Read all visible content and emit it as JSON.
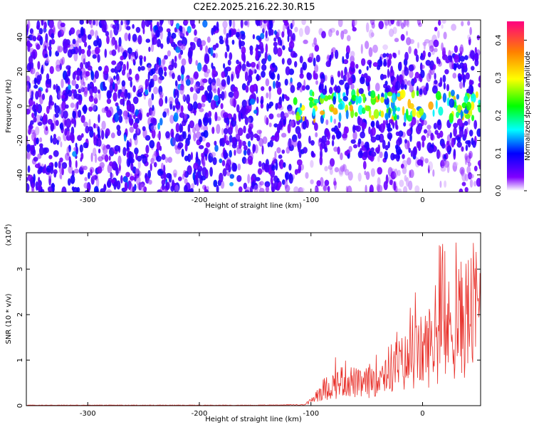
{
  "title": "C2E2.2025.216.22.30.R15",
  "chart_data": [
    {
      "type": "heatmap",
      "xlabel": "Height of straight line (km)",
      "ylabel": "Frequency (Hz)",
      "xlim": [
        -355,
        52
      ],
      "ylim": [
        -50,
        50
      ],
      "xticks": [
        -300,
        -200,
        -100,
        0
      ],
      "yticks": [
        -40,
        -20,
        0,
        20,
        40
      ],
      "colorbar": {
        "label": "Normalized spectral amplitude",
        "range": [
          0.0,
          0.45
        ],
        "ticks": [
          0.0,
          0.1,
          0.2,
          0.3,
          0.4
        ],
        "tick_labels": [
          "0.0",
          "0.1",
          "0.2",
          "0.3",
          "0.4"
        ]
      },
      "description_of_data": "noise band x<-115 covers full frequency range with amplitude ~0.02-0.08; for x>-115 signal concentrated near 0 Hz with amplitude up to ~0.35",
      "signal_band": {
        "x_start": -115,
        "x_end": 52,
        "center_hz": 0,
        "peak_amplitude": 0.35
      },
      "grid": false
    },
    {
      "type": "line",
      "xlabel": "Height of straight line (km)",
      "ylabel": "SNR (10 * v/v)",
      "y_exponent_label": "(x10",
      "y_exponent_sup": "4",
      "y_exponent_close": ")",
      "xlim": [
        -355,
        52
      ],
      "ylim": [
        0,
        3.8
      ],
      "xticks": [
        -300,
        -200,
        -100,
        0
      ],
      "yticks": [
        0,
        1,
        2,
        3
      ],
      "color": "#e8302a",
      "grid": false,
      "series": [
        {
          "x": [
            -355,
            -300,
            -250,
            -200,
            -150,
            -105,
            -100,
            -95,
            -90,
            -85,
            -80,
            -75,
            -70,
            -65,
            -60,
            -55,
            -50,
            -45,
            -40,
            -35,
            -30,
            -25,
            -20,
            -15,
            -10,
            -5,
            0,
            5,
            10,
            15,
            20,
            25,
            30,
            35,
            40,
            45,
            50
          ],
          "y": [
            0.01,
            0.01,
            0.01,
            0.01,
            0.01,
            0.02,
            0.1,
            0.25,
            0.35,
            0.4,
            0.45,
            0.5,
            0.6,
            0.55,
            0.5,
            0.45,
            0.5,
            0.6,
            0.7,
            0.75,
            0.8,
            0.85,
            0.9,
            0.95,
            1.0,
            1.1,
            1.2,
            1.3,
            1.4,
            1.5,
            1.6,
            1.7,
            1.8,
            1.9,
            2.0,
            2.1,
            2.2
          ]
        }
      ]
    }
  ]
}
